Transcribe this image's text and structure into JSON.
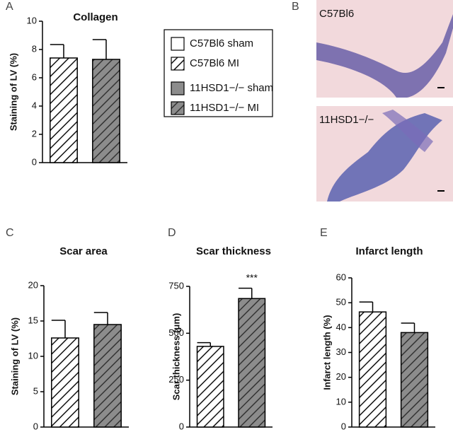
{
  "chart_data": [
    {
      "type": "bar",
      "panel_label": "A",
      "title": "Collagen",
      "y_label": "Staining of LV (%)",
      "categories": [
        null,
        null
      ],
      "values": [
        7.4,
        7.3
      ],
      "errors": [
        0.95,
        1.4
      ],
      "colors": [
        "#ffffff",
        "#8c8c8c"
      ],
      "hatch": true,
      "ylim": [
        0,
        10
      ],
      "yticks": [
        0,
        2,
        4,
        6,
        8,
        10
      ]
    },
    {
      "type": "bar",
      "panel_label": "C",
      "title": "Scar area",
      "y_label": "Staining of LV (%)",
      "categories": [
        null,
        null
      ],
      "values": [
        12.6,
        14.5
      ],
      "errors": [
        2.5,
        1.7
      ],
      "colors": [
        "#ffffff",
        "#8c8c8c"
      ],
      "hatch": true,
      "ylim": [
        0,
        20
      ],
      "yticks": [
        0,
        5,
        10,
        15,
        20
      ]
    },
    {
      "type": "bar",
      "panel_label": "D",
      "title": "Scar thickness",
      "y_label": "Scar thickness (μm)",
      "categories": [
        null,
        null
      ],
      "values": [
        430,
        685
      ],
      "errors": [
        20,
        55
      ],
      "annotations": [
        null,
        "***"
      ],
      "colors": [
        "#ffffff",
        "#8c8c8c"
      ],
      "hatch": true,
      "ylim": [
        0,
        750
      ],
      "yticks": [
        0,
        250,
        500,
        750
      ]
    },
    {
      "type": "bar",
      "panel_label": "E",
      "title": "Infarct length",
      "y_label": "Infarct length (%)",
      "categories": [
        null,
        null
      ],
      "values": [
        46.3,
        38
      ],
      "errors": [
        4,
        3.8
      ],
      "colors": [
        "#ffffff",
        "#8c8c8c"
      ],
      "hatch": true,
      "ylim": [
        0,
        60
      ],
      "yticks": [
        0,
        10,
        20,
        30,
        40,
        50,
        60
      ]
    }
  ],
  "legend": [
    {
      "name": "C57Bl6 sham",
      "color": "#ffffff",
      "hatch": false
    },
    {
      "name": "C57Bl6 MI",
      "color": "#ffffff",
      "hatch": true
    },
    {
      "name": "11HSD1−/− sham",
      "color": "#8c8c8c",
      "hatch": false
    },
    {
      "name": "11HSD1−/− MI",
      "color": "#8c8c8c",
      "hatch": true
    }
  ],
  "panel_b": {
    "panel_label": "B",
    "labels": [
      "C57Bl6",
      "11HSD1−/−"
    ]
  }
}
